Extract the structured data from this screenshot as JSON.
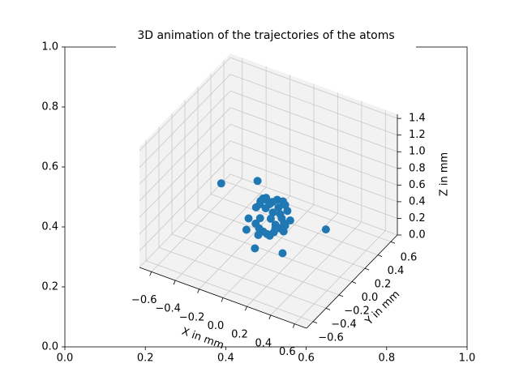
{
  "chart_data": [
    {
      "type": "axes2d",
      "xlim": [
        0,
        1
      ],
      "ylim": [
        0,
        1
      ],
      "xticks": [
        {
          "value": 0,
          "label": "0.0"
        },
        0.2,
        0.4,
        0.6,
        0.8,
        {
          "value": 1,
          "label": "1.0"
        }
      ],
      "yticks": [
        {
          "value": 0,
          "label": "0.0"
        },
        0.2,
        0.4,
        0.6,
        0.8,
        {
          "value": 1,
          "label": "1.0"
        }
      ]
    },
    {
      "type": "scatter3d",
      "title": "3D animation of the trajectories of the atoms",
      "xlabel": "X in mm",
      "ylabel": "Y in mm",
      "zlabel": "Z in mm",
      "color": "#1f77b4",
      "xlim": [
        -0.7,
        0.7
      ],
      "ylim": [
        -0.7,
        0.7
      ],
      "zlim": [
        0,
        1.45
      ],
      "xticks": [
        {
          "value": -0.6,
          "label": "−0.6"
        },
        {
          "value": -0.4,
          "label": "−0.4"
        },
        {
          "value": -0.2,
          "label": "−0.2"
        },
        {
          "value": 0,
          "label": "0.0"
        },
        0.2,
        0.4,
        0.6
      ],
      "yticks": [
        {
          "value": -0.6,
          "label": "−0.6"
        },
        {
          "value": -0.4,
          "label": "−0.4"
        },
        {
          "value": -0.2,
          "label": "−0.2"
        },
        {
          "value": 0,
          "label": "0.0"
        },
        0.2,
        0.4,
        0.6
      ],
      "zticks": [
        {
          "value": 0,
          "label": "0.0"
        },
        0.2,
        0.4,
        0.6,
        0.8,
        {
          "value": 1,
          "label": "1.0"
        },
        1.2,
        1.4
      ],
      "x": [
        0.02,
        -0.05,
        0.08,
        -0.1,
        0.12,
        0.0,
        -0.03,
        0.06,
        -0.08,
        0.1,
        0.04,
        -0.12,
        0.15,
        -0.02,
        0.07,
        -0.06,
        0.03,
        0.09,
        -0.15,
        0.11,
        0.0,
        -0.04,
        0.05,
        -0.09,
        0.13,
        0.01,
        -0.07,
        0.08,
        -0.11,
        0.06,
        -0.45,
        0.4,
        0.05,
        -0.2,
        0.2,
        0.1,
        -0.05,
        0.14,
        -0.13,
        0.03
      ],
      "y": [
        0.0,
        0.05,
        -0.04,
        0.1,
        0.02,
        -0.08,
        0.12,
        0.07,
        -0.05,
        -0.1,
        0.15,
        0.03,
        0.06,
        -0.12,
        -0.02,
        0.08,
        0.1,
        0.04,
        -0.03,
        0.09,
        0.02,
        -0.07,
        -0.11,
        0.13,
        -0.06,
        0.05,
        0.0,
        0.11,
        0.07,
        -0.09,
        0.1,
        0.15,
        -0.3,
        0.2,
        -0.15,
        0.05,
        -0.03,
        0.0,
        -0.1,
        0.08
      ],
      "z": [
        0.4,
        0.45,
        0.35,
        0.5,
        0.38,
        0.3,
        0.48,
        0.42,
        0.33,
        0.36,
        0.5,
        0.44,
        0.4,
        0.28,
        0.37,
        0.52,
        0.46,
        0.41,
        0.34,
        0.47,
        0.55,
        0.31,
        0.32,
        0.49,
        0.39,
        0.43,
        0.36,
        0.51,
        0.45,
        0.29,
        0.5,
        0.35,
        0.3,
        0.58,
        0.2,
        0.25,
        0.6,
        0.38,
        0.27,
        0.57
      ]
    }
  ]
}
